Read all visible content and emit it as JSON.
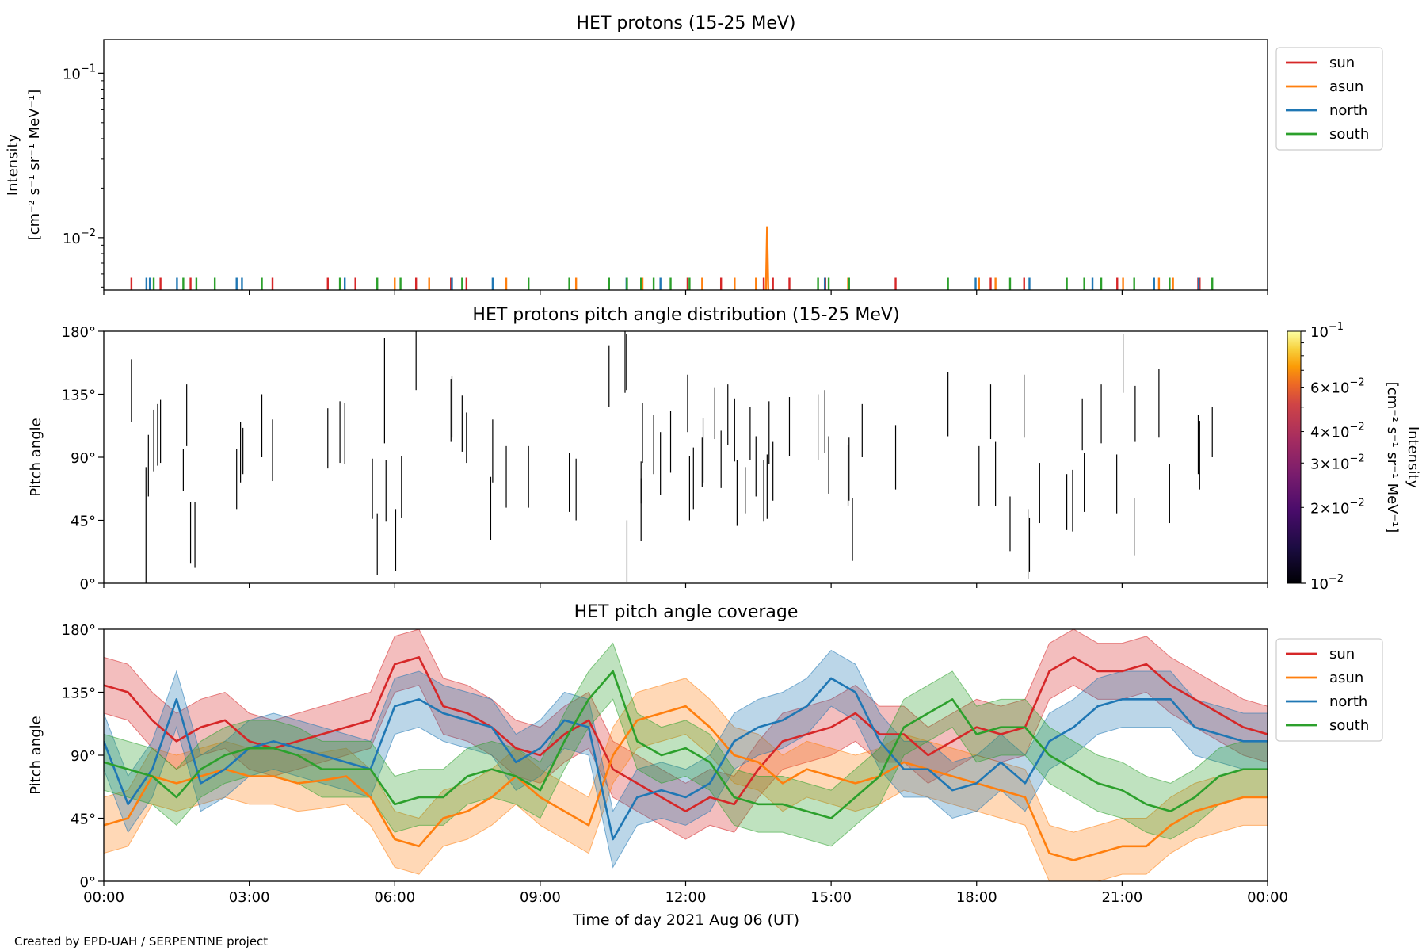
{
  "footer": {
    "credit": "Created by EPD-UAH / SERPENTINE project"
  },
  "colors": {
    "sun": "#d62728",
    "asun": "#ff7f0e",
    "north": "#1f77b4",
    "south": "#2ca02c",
    "frame": "#000000"
  },
  "chart_data": [
    {
      "type": "line",
      "title": "HET protons (15-25 MeV)",
      "ylabel_line1": "Intensity",
      "ylabel_line2": "[cm⁻² s⁻¹ sr⁻¹ MeV⁻¹]",
      "yscale": "log",
      "ylim": [
        0.0048,
        0.16
      ],
      "yticks": [
        {
          "value": 0.1,
          "base": "10",
          "exp": "−1"
        },
        {
          "value": 0.01,
          "base": "10",
          "exp": "−2"
        }
      ],
      "xlim_hours": [
        0,
        24
      ],
      "legend_position": "outside-right",
      "legend": [
        "sun",
        "asun",
        "north",
        "south"
      ],
      "baseline": 0.0048,
      "series": [
        {
          "name": "sun",
          "spike_height": 0.0057,
          "x_hours": [
            0.57,
            1.17,
            1.79,
            3.48,
            4.62,
            5.19,
            6.44,
            7.16,
            7.48,
            12.04,
            12.73,
            13.61,
            13.8,
            14.14,
            14.88,
            16.33,
            18.29,
            18.98,
            20.9,
            22.57,
            22.6
          ]
        },
        {
          "name": "asun",
          "spike_height": 0.0057,
          "x_hours": [
            6.0,
            6.71,
            8.3,
            9.74,
            11.11,
            12.34,
            13.01,
            13.45,
            15.35,
            18.05,
            18.39,
            21.02,
            21.76,
            22.05
          ],
          "peaks": [
            {
              "x_hours": 13.68,
              "value": 0.0117
            }
          ]
        },
        {
          "name": "north",
          "spike_height": 0.0057,
          "x_hours": [
            0.88,
            0.95,
            1.51,
            2.74,
            2.85,
            4.97,
            7.18,
            8.02,
            10.78,
            11.48,
            14.87,
            17.98,
            19.09,
            20.39,
            21.66,
            22.58
          ],
          "peaks": []
        },
        {
          "name": "south",
          "spike_height": 0.0057,
          "x_hours": [
            1.03,
            1.64,
            1.91,
            2.29,
            3.26,
            4.87,
            5.64,
            6.12,
            7.39,
            8.76,
            9.6,
            10.42,
            10.79,
            11.08,
            11.34,
            11.69,
            12.08,
            14.73,
            14.95,
            15.37,
            17.41,
            18.69,
            19.86,
            20.22,
            20.57,
            21.25,
            21.98,
            22.86
          ]
        }
      ],
      "xticks": [
        "00:00",
        "03:00",
        "06:00",
        "09:00",
        "12:00",
        "15:00",
        "18:00",
        "21:00",
        "00:00"
      ]
    },
    {
      "type": "heatmap",
      "title": "HET protons pitch angle distribution (15-25 MeV)",
      "ylabel": "Pitch angle",
      "ylim": [
        0,
        180
      ],
      "yticks": [
        "0°",
        "45°",
        "90°",
        "135°",
        "180°"
      ],
      "xlim_hours": [
        0,
        24
      ],
      "colorscale": "inferno",
      "colorbar": {
        "label": "Intensity [cm⁻² s⁻¹ sr⁻¹ MeV⁻¹]",
        "label_line1": "Intensity",
        "label_line2": "[cm⁻² s⁻¹ sr⁻¹ MeV⁻¹]",
        "scale": "log",
        "range": [
          0.01,
          0.1
        ],
        "ticks_major": [
          {
            "value": 0.1,
            "base": "10",
            "exp": "−1"
          },
          {
            "value": 0.01,
            "base": "10",
            "exp": "−2"
          }
        ],
        "ticks_minor": [
          {
            "value": 0.06,
            "mant": "6×10",
            "exp": "−2"
          },
          {
            "value": 0.04,
            "mant": "4×10",
            "exp": "−2"
          },
          {
            "value": 0.03,
            "mant": "3×10",
            "exp": "−2"
          },
          {
            "value": 0.02,
            "mant": "2×10",
            "exp": "−2"
          }
        ]
      },
      "segments": [
        [
          0.57,
          115,
          160
        ],
        [
          0.87,
          0,
          83
        ],
        [
          0.92,
          62,
          106
        ],
        [
          1.03,
          80,
          124
        ],
        [
          1.11,
          84,
          128
        ],
        [
          1.17,
          86,
          131
        ],
        [
          1.64,
          66,
          96
        ],
        [
          1.71,
          98,
          142
        ],
        [
          1.79,
          14,
          58
        ],
        [
          1.88,
          11,
          58
        ],
        [
          2.74,
          53,
          96
        ],
        [
          2.82,
          72,
          115
        ],
        [
          2.87,
          78,
          111
        ],
        [
          3.26,
          90,
          135
        ],
        [
          3.48,
          73,
          117
        ],
        [
          4.62,
          82,
          125
        ],
        [
          4.87,
          86,
          130
        ],
        [
          4.97,
          85,
          129
        ],
        [
          5.54,
          46,
          89
        ],
        [
          5.64,
          6,
          50
        ],
        [
          5.79,
          100,
          175
        ],
        [
          5.82,
          44,
          88
        ],
        [
          6.02,
          9,
          53
        ],
        [
          6.14,
          47,
          91
        ],
        [
          6.44,
          138,
          180
        ],
        [
          7.16,
          101,
          146
        ],
        [
          7.18,
          104,
          148
        ],
        [
          7.39,
          94,
          134
        ],
        [
          7.48,
          86,
          122
        ],
        [
          7.98,
          31,
          76
        ],
        [
          8.02,
          72,
          117
        ],
        [
          8.3,
          54,
          98
        ],
        [
          8.76,
          54,
          98
        ],
        [
          9.6,
          51,
          93
        ],
        [
          9.74,
          45,
          89
        ],
        [
          10.42,
          126,
          170
        ],
        [
          10.79,
          1,
          45
        ],
        [
          10.75,
          136,
          180
        ],
        [
          10.78,
          138,
          178
        ],
        [
          11.08,
          30,
          75
        ],
        [
          11.11,
          86,
          129
        ],
        [
          11.34,
          78,
          120
        ],
        [
          11.48,
          63,
          108
        ],
        [
          11.69,
          79,
          123
        ],
        [
          11.08,
          57,
          87
        ],
        [
          12.04,
          108,
          149
        ],
        [
          12.34,
          69,
          104
        ],
        [
          12.08,
          45,
          91
        ],
        [
          12.16,
          53,
          97
        ],
        [
          12.36,
          72,
          118
        ],
        [
          12.6,
          103,
          140
        ],
        [
          12.73,
          68,
          109
        ],
        [
          12.87,
          99,
          142
        ],
        [
          13.01,
          87,
          132
        ],
        [
          13.06,
          41,
          88
        ],
        [
          13.23,
          50,
          83
        ],
        [
          13.33,
          88,
          126
        ],
        [
          13.45,
          62,
          105
        ],
        [
          13.61,
          44,
          88
        ],
        [
          13.68,
          46,
          92
        ],
        [
          13.72,
          85,
          130
        ],
        [
          13.8,
          59,
          101
        ],
        [
          14.14,
          91,
          133
        ],
        [
          14.73,
          88,
          135
        ],
        [
          14.87,
          93,
          138
        ],
        [
          14.95,
          64,
          105
        ],
        [
          15.37,
          59,
          104
        ],
        [
          15.35,
          55,
          99
        ],
        [
          15.44,
          16,
          61
        ],
        [
          15.64,
          90,
          128
        ],
        [
          16.33,
          67,
          113
        ],
        [
          17.41,
          105,
          151
        ],
        [
          18.05,
          55,
          98
        ],
        [
          18.29,
          103,
          142
        ],
        [
          18.39,
          55,
          101
        ],
        [
          18.69,
          23,
          62
        ],
        [
          18.98,
          104,
          149
        ],
        [
          19.06,
          3,
          53
        ],
        [
          19.09,
          8,
          47
        ],
        [
          19.3,
          43,
          86
        ],
        [
          19.86,
          38,
          78
        ],
        [
          19.98,
          37,
          81
        ],
        [
          20.18,
          95,
          132
        ],
        [
          20.22,
          51,
          93
        ],
        [
          20.57,
          100,
          142
        ],
        [
          20.89,
          50,
          92
        ],
        [
          21.02,
          136,
          178
        ],
        [
          21.25,
          20,
          61
        ],
        [
          21.27,
          101,
          141
        ],
        [
          21.76,
          104,
          153
        ],
        [
          21.98,
          43,
          85
        ],
        [
          22.86,
          90,
          126
        ],
        [
          22.57,
          78,
          120
        ],
        [
          22.6,
          67,
          116
        ]
      ],
      "xticks": [
        "00:00",
        "03:00",
        "06:00",
        "09:00",
        "12:00",
        "15:00",
        "18:00",
        "21:00",
        "00:00"
      ]
    },
    {
      "type": "area",
      "title": "HET pitch angle coverage",
      "ylabel": "Pitch angle",
      "xlabel": "Time of day 2021 Aug 06 (UT)",
      "ylim": [
        0,
        180
      ],
      "yticks": [
        "0°",
        "45°",
        "90°",
        "135°",
        "180°"
      ],
      "xlim_hours": [
        0,
        24
      ],
      "xticks": [
        "00:00",
        "03:00",
        "06:00",
        "09:00",
        "12:00",
        "15:00",
        "18:00",
        "21:00",
        "00:00"
      ],
      "legend_position": "outside-right",
      "legend": [
        "sun",
        "asun",
        "north",
        "south"
      ],
      "band_halfwidth_deg": 20,
      "x": [
        0,
        0.5,
        1,
        1.5,
        2,
        2.5,
        3,
        3.5,
        4,
        4.5,
        5,
        5.5,
        6,
        6.5,
        7,
        7.5,
        8,
        8.5,
        9,
        9.5,
        10,
        10.5,
        11,
        11.5,
        12,
        12.5,
        13,
        13.5,
        14,
        14.5,
        15,
        15.5,
        16,
        16.5,
        17,
        17.5,
        18,
        18.5,
        19,
        19.5,
        20,
        20.5,
        21,
        21.5,
        22,
        22.5,
        23,
        23.5,
        24
      ],
      "series": [
        {
          "name": "sun",
          "values": [
            140,
            135,
            115,
            100,
            110,
            115,
            100,
            95,
            100,
            105,
            110,
            115,
            155,
            160,
            125,
            120,
            110,
            95,
            90,
            105,
            115,
            80,
            70,
            60,
            50,
            60,
            55,
            80,
            100,
            105,
            110,
            120,
            105,
            105,
            90,
            100,
            110,
            105,
            110,
            150,
            160,
            150,
            150,
            155,
            140,
            130,
            120,
            110,
            105
          ]
        },
        {
          "name": "asun",
          "values": [
            40,
            45,
            75,
            70,
            75,
            80,
            75,
            75,
            70,
            72,
            75,
            60,
            30,
            25,
            45,
            50,
            60,
            75,
            60,
            50,
            40,
            90,
            115,
            120,
            125,
            110,
            90,
            85,
            70,
            80,
            75,
            70,
            75,
            85,
            80,
            75,
            70,
            65,
            60,
            20,
            15,
            20,
            25,
            25,
            40,
            50,
            55,
            60,
            60
          ]
        },
        {
          "name": "north",
          "values": [
            100,
            55,
            80,
            130,
            70,
            80,
            95,
            100,
            95,
            90,
            85,
            80,
            125,
            130,
            120,
            115,
            110,
            85,
            95,
            115,
            110,
            30,
            60,
            65,
            60,
            70,
            100,
            110,
            115,
            125,
            145,
            135,
            100,
            80,
            80,
            65,
            70,
            85,
            70,
            100,
            110,
            125,
            130,
            130,
            130,
            110,
            105,
            100,
            100
          ]
        },
        {
          "name": "south",
          "values": [
            85,
            80,
            75,
            60,
            80,
            90,
            95,
            95,
            90,
            80,
            80,
            80,
            55,
            60,
            60,
            75,
            80,
            75,
            65,
            100,
            130,
            150,
            100,
            90,
            95,
            85,
            60,
            55,
            55,
            50,
            45,
            60,
            75,
            110,
            120,
            130,
            105,
            110,
            110,
            90,
            80,
            70,
            65,
            55,
            50,
            60,
            75,
            80,
            80
          ]
        }
      ]
    }
  ]
}
